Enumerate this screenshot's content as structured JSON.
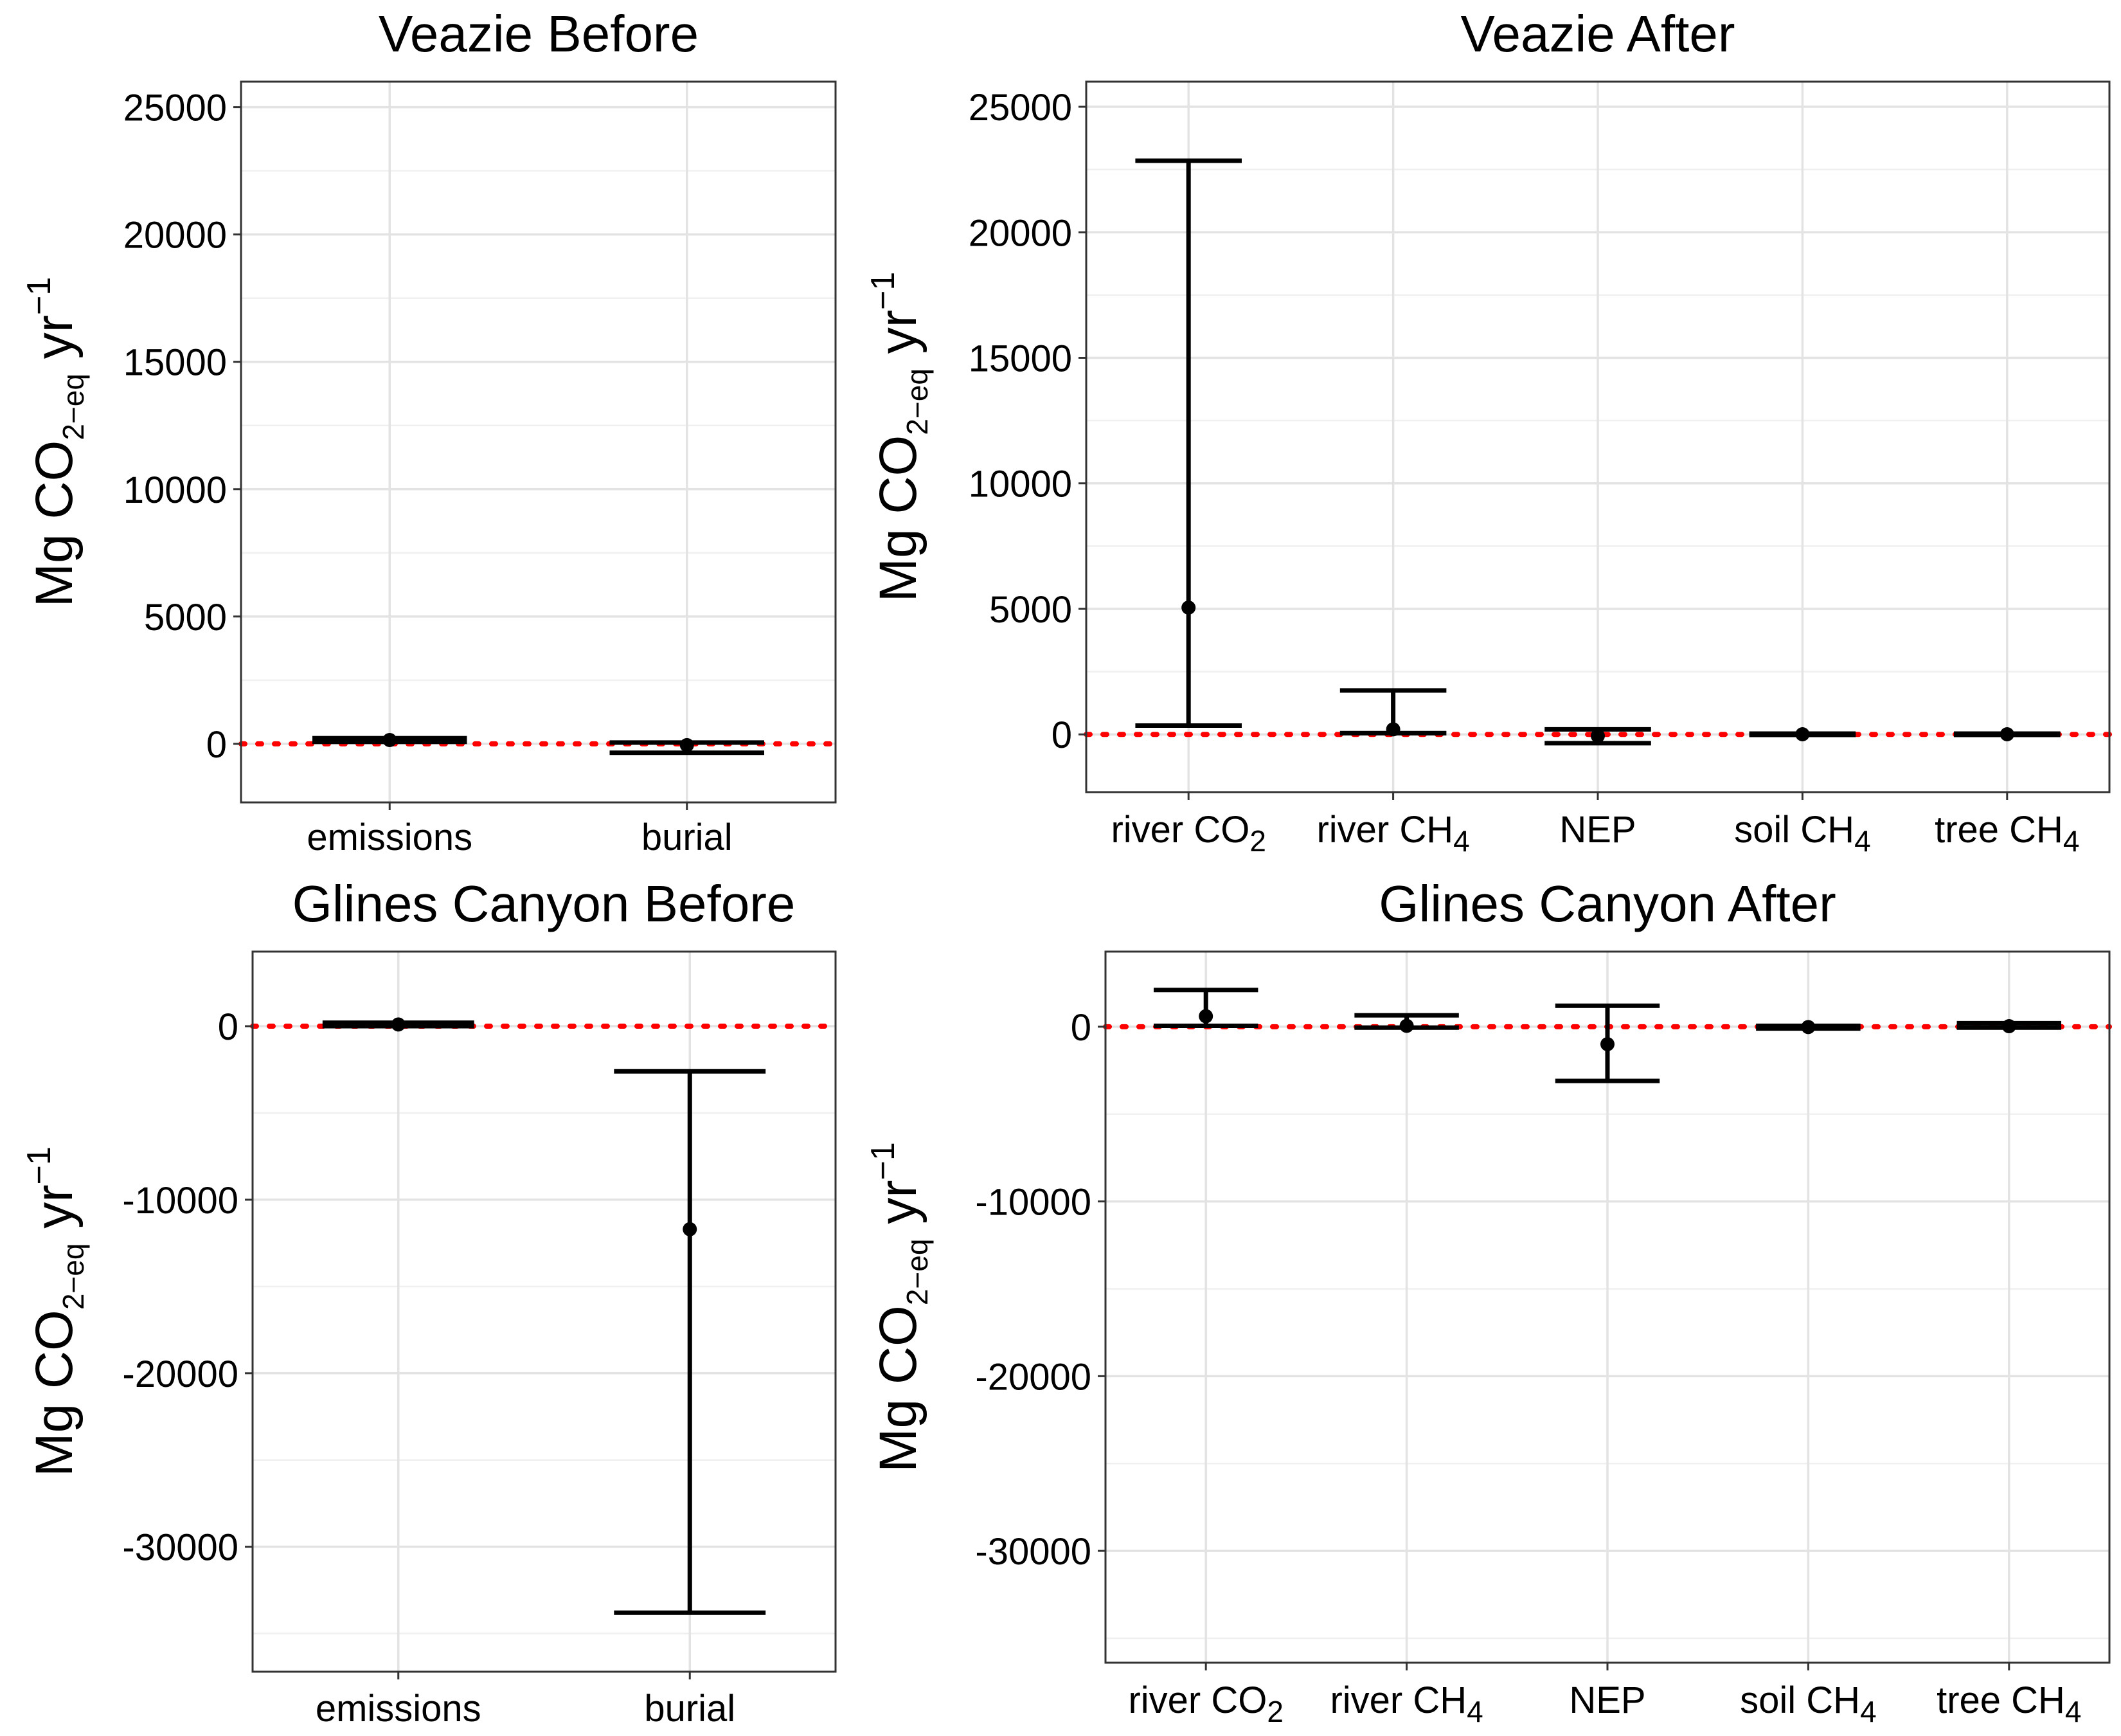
{
  "chart_data": [
    {
      "type": "errorbar",
      "title": "Veazie Before",
      "ylabel": "Mg CO2-eq yr-1",
      "categories": [
        "emissions",
        "burial"
      ],
      "estimates": [
        150,
        -50
      ],
      "lower": [
        80,
        -350
      ],
      "upper": [
        220,
        50
      ],
      "ylim": [
        -2300,
        26000
      ],
      "yticks": [
        0,
        5000,
        10000,
        15000,
        20000,
        25000
      ],
      "reference_line": {
        "y": 0,
        "color": "#ff0000",
        "style": "dotted"
      },
      "grid": true
    },
    {
      "type": "errorbar",
      "title": "Veazie After",
      "ylabel": "Mg CO2-eq yr-1",
      "categories": [
        "river CO2",
        "river CH4",
        "NEP",
        "soil CH4",
        "tree CH4"
      ],
      "estimates": [
        5050,
        200,
        -60,
        5,
        5
      ],
      "lower": [
        350,
        50,
        -350,
        -20,
        -20
      ],
      "upper": [
        22850,
        1750,
        200,
        30,
        30
      ],
      "ylim": [
        -2300,
        26000
      ],
      "yticks": [
        0,
        5000,
        10000,
        15000,
        20000,
        25000
      ],
      "reference_line": {
        "y": 0,
        "color": "#ff0000",
        "style": "dotted"
      },
      "grid": true
    },
    {
      "type": "errorbar",
      "title": "Glines Canyon Before",
      "ylabel": "Mg CO2-eq yr-1",
      "categories": [
        "emissions",
        "burial"
      ],
      "estimates": [
        100,
        -11700
      ],
      "lower": [
        0,
        -33800
      ],
      "upper": [
        200,
        -2600
      ],
      "ylim": [
        -37200,
        4300
      ],
      "yticks": [
        -30000,
        -20000,
        -10000,
        0
      ],
      "reference_line": {
        "y": 0,
        "color": "#ff0000",
        "style": "dotted"
      },
      "grid": true
    },
    {
      "type": "errorbar",
      "title": "Glines Canyon After",
      "ylabel": "Mg CO2-eq yr-1",
      "categories": [
        "river CO2",
        "river CH4",
        "NEP",
        "soil CH4",
        "tree CH4"
      ],
      "estimates": [
        600,
        50,
        -1000,
        -20,
        30
      ],
      "lower": [
        50,
        -50,
        -3100,
        -100,
        -50
      ],
      "upper": [
        2100,
        650,
        1200,
        50,
        200
      ],
      "ylim": [
        -36400,
        4300
      ],
      "yticks": [
        -30000,
        -20000,
        -10000,
        0
      ],
      "reference_line": {
        "y": 0,
        "color": "#ff0000",
        "style": "dotted"
      },
      "grid": true
    }
  ]
}
